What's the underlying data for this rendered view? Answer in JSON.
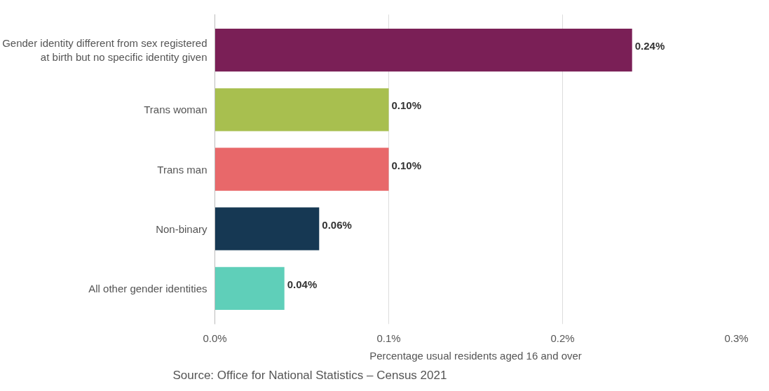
{
  "chart_data": {
    "type": "bar",
    "orientation": "horizontal",
    "categories": [
      "Gender identity different from sex registered at birth but no specific identity given",
      "Trans woman",
      "Trans man",
      "Non-binary",
      "All other gender identities"
    ],
    "values": [
      0.24,
      0.1,
      0.1,
      0.06,
      0.04
    ],
    "colors": [
      "#7a1f56",
      "#a8bf4f",
      "#e8686a",
      "#163853",
      "#5fcfb9"
    ],
    "value_labels": [
      "0.24%",
      "0.10%",
      "0.10%",
      "0.06%",
      "0.04%"
    ],
    "xlim": [
      0,
      0.3
    ],
    "xticks": [
      {
        "value": 0,
        "label": "0.0%"
      },
      {
        "value": 0.1,
        "label": "0.1%"
      },
      {
        "value": 0.2,
        "label": "0.2%"
      },
      {
        "value": 0.3,
        "label": "0.3%"
      }
    ],
    "xlabel": "Percentage usual residents aged 16 and over",
    "grid": "x",
    "annotations": [
      "Source: Office for National Statistics – Census 2021"
    ]
  }
}
